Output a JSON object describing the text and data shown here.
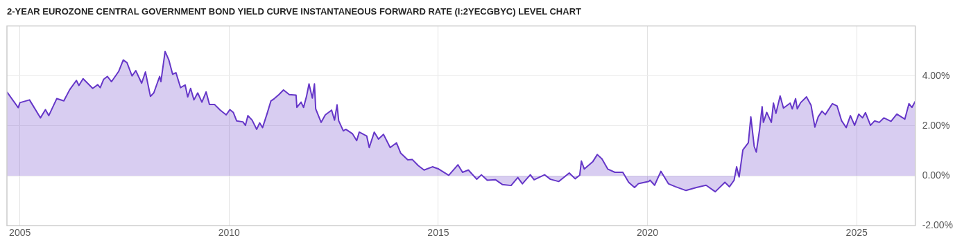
{
  "chart_data": {
    "type": "area",
    "title": "2-YEAR EUROZONE CENTRAL GOVERNMENT BOND YIELD CURVE INSTANTANEOUS FORWARD RATE (I:2YECGBYC) LEVEL CHART",
    "xlim": [
      2004.69,
      2026.4
    ],
    "xticks": [
      2005,
      2010,
      2015,
      2020,
      2025
    ],
    "ylim": [
      -2,
      6
    ],
    "yticks": [
      {
        "value": -2,
        "label": "-2.00%"
      },
      {
        "value": 0,
        "label": "0.00%"
      },
      {
        "value": 2,
        "label": "2.00%"
      },
      {
        "value": 4,
        "label": "4.00%"
      },
      {
        "value": 6,
        "label": null
      }
    ],
    "grid": true,
    "legend": false,
    "marker": "none",
    "line_style": "solid",
    "series": [
      {
        "color": "#6536c8",
        "x": [
          2004.69,
          2004.96,
          2005.0,
          2005.23,
          2005.49,
          2005.61,
          2005.69,
          2005.88,
          2006.05,
          2006.19,
          2006.35,
          2006.41,
          2006.51,
          2006.74,
          2006.86,
          2006.92,
          2007.0,
          2007.09,
          2007.19,
          2007.36,
          2007.47,
          2007.56,
          2007.68,
          2007.77,
          2007.91,
          2008.0,
          2008.12,
          2008.2,
          2008.34,
          2008.37,
          2008.47,
          2008.56,
          2008.65,
          2008.73,
          2008.84,
          2008.95,
          2009.01,
          2009.08,
          2009.16,
          2009.25,
          2009.35,
          2009.45,
          2009.53,
          2009.65,
          2009.79,
          2009.93,
          2010.02,
          2010.1,
          2010.18,
          2010.33,
          2010.39,
          2010.45,
          2010.55,
          2010.66,
          2010.73,
          2010.8,
          2010.91,
          2011.0,
          2011.08,
          2011.19,
          2011.3,
          2011.44,
          2011.6,
          2011.62,
          2011.72,
          2011.78,
          2011.85,
          2011.91,
          2011.99,
          2012.04,
          2012.07,
          2012.2,
          2012.3,
          2012.45,
          2012.52,
          2012.58,
          2012.62,
          2012.73,
          2012.79,
          2012.95,
          2013.05,
          2013.11,
          2013.29,
          2013.35,
          2013.47,
          2013.57,
          2013.69,
          2013.85,
          2014.0,
          2014.1,
          2014.27,
          2014.38,
          2014.52,
          2014.66,
          2014.86,
          2015.01,
          2015.25,
          2015.47,
          2015.58,
          2015.72,
          2015.92,
          2016.03,
          2016.17,
          2016.37,
          2016.53,
          2016.74,
          2016.9,
          2017.01,
          2017.2,
          2017.29,
          2017.54,
          2017.68,
          2017.88,
          2018.13,
          2018.27,
          2018.38,
          2018.42,
          2018.49,
          2018.69,
          2018.8,
          2018.91,
          2019.05,
          2019.22,
          2019.41,
          2019.55,
          2019.69,
          2019.78,
          2020.03,
          2020.06,
          2020.17,
          2020.32,
          2020.5,
          2020.67,
          2020.92,
          2021.17,
          2021.4,
          2021.62,
          2021.85,
          2021.96,
          2022.07,
          2022.13,
          2022.19,
          2022.28,
          2022.41,
          2022.47,
          2022.55,
          2022.6,
          2022.68,
          2022.74,
          2022.77,
          2022.85,
          2022.96,
          2023.01,
          2023.07,
          2023.17,
          2023.25,
          2023.41,
          2023.46,
          2023.54,
          2023.58,
          2023.66,
          2023.8,
          2023.91,
          2024.0,
          2024.08,
          2024.17,
          2024.25,
          2024.42,
          2024.53,
          2024.64,
          2024.75,
          2024.85,
          2024.95,
          2025.05,
          2025.14,
          2025.21,
          2025.33,
          2025.43,
          2025.54,
          2025.65,
          2025.82,
          2025.96,
          2026.15,
          2026.25,
          2026.32,
          2026.4
        ],
        "values": [
          3.36,
          2.73,
          2.93,
          3.04,
          2.32,
          2.65,
          2.41,
          3.09,
          3.0,
          3.45,
          3.82,
          3.62,
          3.89,
          3.5,
          3.65,
          3.53,
          3.86,
          3.98,
          3.77,
          4.18,
          4.64,
          4.53,
          4.0,
          4.21,
          3.71,
          4.16,
          3.18,
          3.32,
          3.98,
          3.77,
          4.98,
          4.64,
          4.07,
          4.13,
          3.53,
          3.64,
          3.16,
          3.5,
          3.04,
          3.32,
          2.95,
          3.36,
          2.86,
          2.86,
          2.63,
          2.44,
          2.65,
          2.54,
          2.2,
          2.16,
          2.02,
          2.41,
          2.23,
          1.86,
          2.12,
          1.93,
          2.5,
          3.0,
          3.09,
          3.25,
          3.44,
          3.25,
          3.23,
          2.74,
          2.95,
          2.74,
          3.18,
          3.68,
          3.11,
          3.68,
          2.68,
          2.14,
          2.44,
          2.63,
          2.23,
          2.84,
          2.2,
          1.8,
          1.86,
          1.68,
          1.41,
          1.75,
          1.59,
          1.13,
          1.75,
          1.47,
          1.66,
          1.13,
          1.32,
          0.91,
          0.64,
          0.65,
          0.41,
          0.23,
          0.36,
          0.27,
          0.02,
          0.44,
          0.14,
          0.23,
          -0.14,
          0.04,
          -0.18,
          -0.16,
          -0.35,
          -0.39,
          -0.07,
          -0.32,
          0.04,
          -0.16,
          0.04,
          -0.14,
          -0.23,
          0.11,
          -0.12,
          0.02,
          0.59,
          0.27,
          0.56,
          0.85,
          0.68,
          0.27,
          0.14,
          0.14,
          -0.26,
          -0.47,
          -0.32,
          -0.23,
          -0.18,
          -0.38,
          0.18,
          -0.32,
          -0.44,
          -0.59,
          -0.47,
          -0.38,
          -0.64,
          -0.26,
          -0.44,
          -0.18,
          0.36,
          -0.05,
          1.04,
          1.32,
          2.36,
          1.18,
          0.95,
          1.86,
          2.77,
          2.14,
          2.54,
          2.14,
          2.91,
          2.5,
          3.2,
          2.71,
          2.91,
          2.68,
          3.09,
          2.68,
          2.93,
          3.16,
          2.82,
          1.95,
          2.36,
          2.59,
          2.45,
          2.89,
          2.8,
          2.2,
          1.93,
          2.41,
          2.02,
          2.47,
          2.32,
          2.53,
          2.02,
          2.2,
          2.14,
          2.32,
          2.18,
          2.47,
          2.27,
          2.89,
          2.74,
          2.98
        ]
      }
    ]
  }
}
